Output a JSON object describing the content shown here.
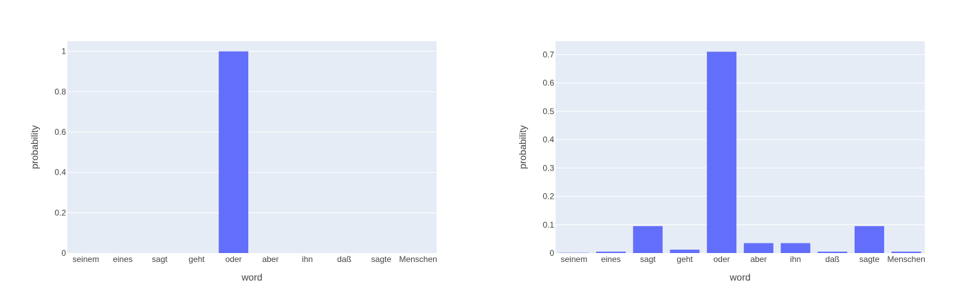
{
  "chart_data": [
    {
      "type": "bar",
      "categories": [
        "seinem",
        "eines",
        "sagt",
        "geht",
        "oder",
        "aber",
        "ihn",
        "daß",
        "sagte",
        "Menschen"
      ],
      "values": [
        0,
        0,
        0,
        0,
        1.0,
        0,
        0,
        0,
        0,
        0
      ],
      "xlabel": "word",
      "ylabel": "probability",
      "ylim": [
        0,
        1.05
      ],
      "yticks": [
        0,
        0.2,
        0.4,
        0.6,
        0.8,
        1
      ],
      "ytick_labels": [
        "0",
        "0.2",
        "0.4",
        "0.6",
        "0.8",
        "1"
      ],
      "grid": true,
      "bar_color": "#636efa",
      "plot_bg": "#e5ecf6"
    },
    {
      "type": "bar",
      "categories": [
        "seinem",
        "eines",
        "sagt",
        "geht",
        "oder",
        "aber",
        "ihn",
        "daß",
        "sagte",
        "Menschen"
      ],
      "values": [
        0.001,
        0.005,
        0.095,
        0.012,
        0.71,
        0.035,
        0.035,
        0.005,
        0.095,
        0.005
      ],
      "xlabel": "word",
      "ylabel": "probability",
      "ylim": [
        0,
        0.747
      ],
      "yticks": [
        0,
        0.1,
        0.2,
        0.3,
        0.4,
        0.5,
        0.6,
        0.7
      ],
      "ytick_labels": [
        "0",
        "0.1",
        "0.2",
        "0.3",
        "0.4",
        "0.5",
        "0.6",
        "0.7"
      ],
      "grid": true,
      "bar_color": "#636efa",
      "plot_bg": "#e5ecf6"
    }
  ]
}
